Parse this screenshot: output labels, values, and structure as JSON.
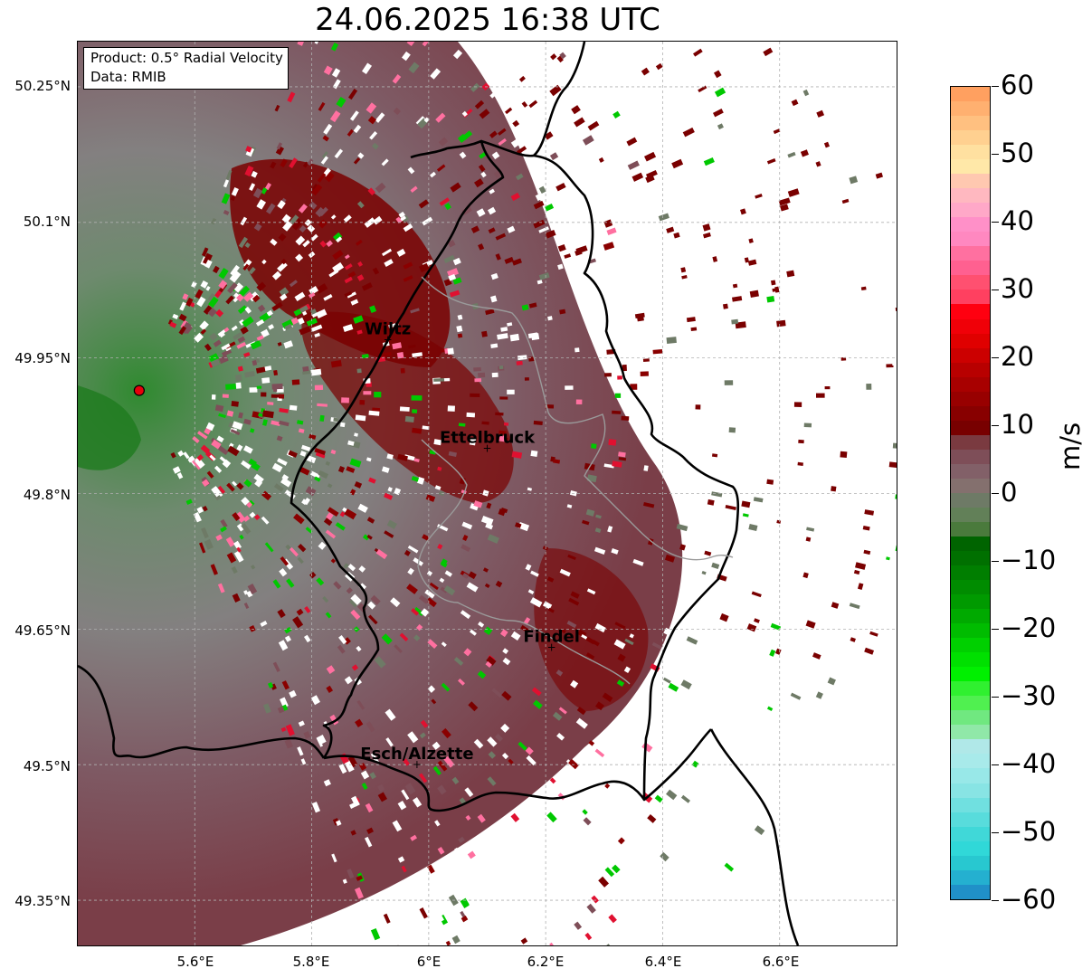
{
  "title": "24.06.2025 16:38 UTC",
  "info_box": {
    "product": "Product: 0.5° Radial Velocity",
    "source": "Data: RMIB"
  },
  "map": {
    "lon_ticks": [
      "5.6°E",
      "5.8°E",
      "6°E",
      "6.2°E",
      "6.4°E",
      "6.6°E"
    ],
    "lat_ticks": [
      "50.25°N",
      "50.1°N",
      "49.95°N",
      "49.8°N",
      "49.65°N",
      "49.5°N",
      "49.35°N"
    ],
    "lon_range": [
      5.4,
      6.8
    ],
    "lat_range": [
      49.3,
      50.3
    ],
    "radar_site": {
      "lon": 5.505,
      "lat": 49.914,
      "color": "#e8000b"
    },
    "cities": [
      {
        "name": "Wiltz",
        "lon": 5.93,
        "lat": 49.97
      },
      {
        "name": "Ettelbruck",
        "lon": 6.1,
        "lat": 49.85
      },
      {
        "name": "Findel",
        "lon": 6.21,
        "lat": 49.63
      },
      {
        "name": "Esch/Alzette",
        "lon": 5.98,
        "lat": 49.5
      }
    ],
    "grid": true
  },
  "colorbar": {
    "unit": "m/s",
    "ticks": [
      "60",
      "50",
      "40",
      "30",
      "20",
      "10",
      "0",
      "−10",
      "−20",
      "−30",
      "−40",
      "−50",
      "−60"
    ],
    "min": -60,
    "max": 60,
    "colors_top_to_bottom": [
      "#ffa060",
      "#ffb070",
      "#ffc080",
      "#ffd090",
      "#ffe0a0",
      "#ffe8a8",
      "#ffc8b0",
      "#ffb8c0",
      "#ffa8c8",
      "#ff90c8",
      "#ff88c0",
      "#ff70a0",
      "#ff6090",
      "#ff5070",
      "#ff4060",
      "#ff0010",
      "#f00008",
      "#e00000",
      "#cc0000",
      "#b80000",
      "#a80000",
      "#980000",
      "#880000",
      "#780000",
      "#7a3a40",
      "#7e4e58",
      "#826068",
      "#84706e",
      "#6e7a66",
      "#628058",
      "#4a7a3c",
      "#006400",
      "#007000",
      "#007e00",
      "#008c00",
      "#009a00",
      "#00aa00",
      "#00bc00",
      "#00d000",
      "#00e000",
      "#00f000",
      "#30f030",
      "#50f050",
      "#70e880",
      "#90e8a8",
      "#b0e8e8",
      "#a8eaea",
      "#98e8e8",
      "#88e4e4",
      "#70e0e0",
      "#58dcdc",
      "#40d8d8",
      "#30d8d8",
      "#28c8d0",
      "#24b0d0",
      "#2090c8"
    ]
  }
}
